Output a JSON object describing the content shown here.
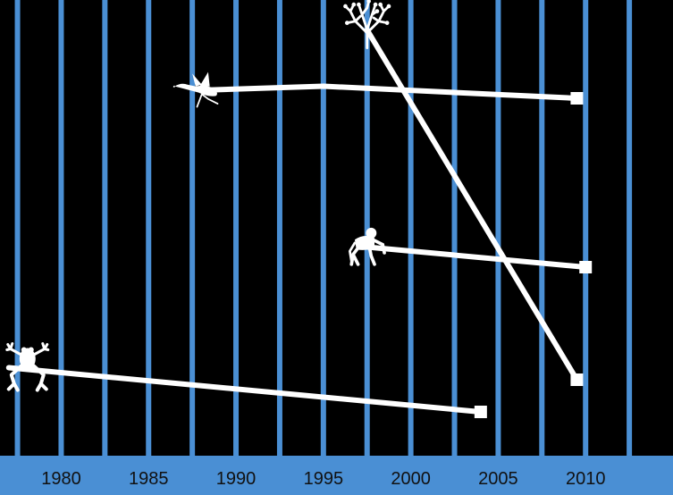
{
  "chart_data": {
    "type": "line",
    "title": "",
    "xlabel": "",
    "ylabel": "",
    "xlim": [
      1976.5,
      2015
    ],
    "ylim": [
      0,
      10
    ],
    "x_ticks": [
      1980,
      1985,
      1990,
      1995,
      2000,
      2005,
      2010
    ],
    "x_tick_labels": [
      "1980",
      "1985",
      "1990",
      "1995",
      "2000",
      "2005",
      "2010"
    ],
    "grid": "vertical",
    "colors": {
      "background": "#000000",
      "gridlines": "#4a8fd4",
      "axis_band": "#4a8fd4",
      "series": "#ffffff",
      "tick_text": "#111111"
    },
    "series": [
      {
        "icon": "frog-icon",
        "x": [
          1977,
          2004
        ],
        "y": [
          1.3,
          0.2
        ],
        "end_marker": "square"
      },
      {
        "icon": "bird-icon",
        "x": [
          1988,
          1995,
          2009.5
        ],
        "y": [
          8.2,
          8.3,
          8.0
        ],
        "end_marker": "square"
      },
      {
        "icon": "coral-icon",
        "x": [
          1997.5,
          2009.5
        ],
        "y": [
          9.7,
          1.0
        ],
        "end_marker": "square"
      },
      {
        "icon": "primate-icon",
        "x": [
          1997.5,
          2010
        ],
        "y": [
          4.3,
          3.8
        ],
        "end_marker": "square"
      }
    ]
  }
}
